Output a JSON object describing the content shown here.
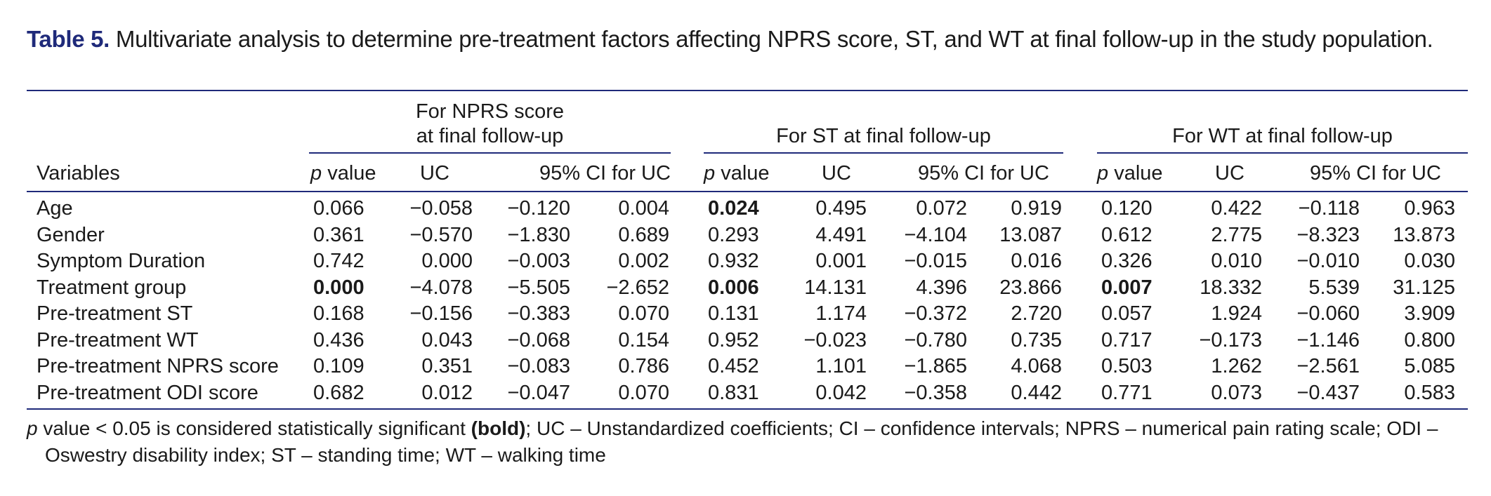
{
  "caption": {
    "label": "Table 5.",
    "text": "Multivariate analysis to determine pre-treatment factors affecting NPRS score, ST, and WT at final follow-up in the study population."
  },
  "groups": [
    {
      "line1": "For NPRS score",
      "line2": "at final follow-up"
    },
    {
      "line1": "",
      "line2": "For ST at final follow-up"
    },
    {
      "line1": "",
      "line2": "For WT at final follow-up"
    }
  ],
  "columns": {
    "variables": "Variables",
    "p_italic": "p",
    "p_rest": " value",
    "uc": "UC",
    "ci": "95% CI for UC"
  },
  "rows": [
    {
      "name": "Age",
      "vals": [
        "0.066",
        "−0.058",
        "−0.120",
        "0.004",
        "0.024",
        "0.495",
        "0.072",
        "0.919",
        "0.120",
        "0.422",
        "−0.118",
        "0.963"
      ],
      "bold": [
        4
      ]
    },
    {
      "name": "Gender",
      "vals": [
        "0.361",
        "−0.570",
        "−1.830",
        "0.689",
        "0.293",
        "4.491",
        "−4.104",
        "13.087",
        "0.612",
        "2.775",
        "−8.323",
        "13.873"
      ],
      "bold": []
    },
    {
      "name": "Symptom Duration",
      "vals": [
        "0.742",
        "0.000",
        "−0.003",
        "0.002",
        "0.932",
        "0.001",
        "−0.015",
        "0.016",
        "0.326",
        "0.010",
        "−0.010",
        "0.030"
      ],
      "bold": []
    },
    {
      "name": "Treatment group",
      "vals": [
        "0.000",
        "−4.078",
        "−5.505",
        "−2.652",
        "0.006",
        "14.131",
        "4.396",
        "23.866",
        "0.007",
        "18.332",
        "5.539",
        "31.125"
      ],
      "bold": [
        0,
        4,
        8
      ]
    },
    {
      "name": "Pre-treatment ST",
      "vals": [
        "0.168",
        "−0.156",
        "−0.383",
        "0.070",
        "0.131",
        "1.174",
        "−0.372",
        "2.720",
        "0.057",
        "1.924",
        "−0.060",
        "3.909"
      ],
      "bold": []
    },
    {
      "name": "Pre-treatment WT",
      "vals": [
        "0.436",
        "0.043",
        "−0.068",
        "0.154",
        "0.952",
        "−0.023",
        "−0.780",
        "0.735",
        "0.717",
        "−0.173",
        "−1.146",
        "0.800"
      ],
      "bold": []
    },
    {
      "name": "Pre-treatment NPRS score",
      "vals": [
        "0.109",
        "0.351",
        "−0.083",
        "0.786",
        "0.452",
        "1.101",
        "−1.865",
        "4.068",
        "0.503",
        "1.262",
        "−2.561",
        "5.085"
      ],
      "bold": []
    },
    {
      "name": "Pre-treatment ODI score",
      "vals": [
        "0.682",
        "0.012",
        "−0.047",
        "0.070",
        "0.831",
        "0.042",
        "−0.358",
        "0.442",
        "0.771",
        "0.073",
        "−0.437",
        "0.583"
      ],
      "bold": []
    }
  ],
  "footnote": {
    "p_italic": "p",
    "part1": " value < 0.05 is considered statistically significant ",
    "bold": "(bold)",
    "part2": "; UC – Unstandardized coefficients; CI – confidence intervals; NPRS – numerical pain rating scale; ODI –",
    "line2": "Oswestry disability index; ST – standing time; WT – walking time"
  }
}
